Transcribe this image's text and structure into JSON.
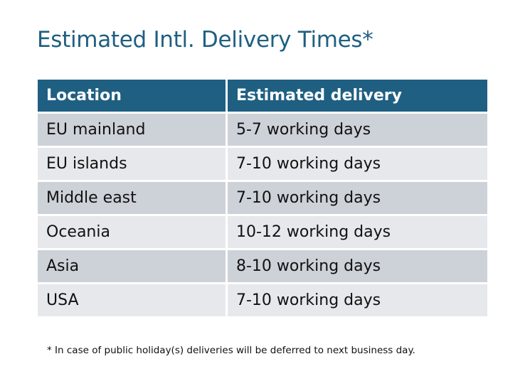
{
  "title": "Estimated Intl. Delivery Times*",
  "table": {
    "headers": [
      "Location",
      "Estimated delivery"
    ],
    "rows": [
      [
        "EU mainland",
        "5-7 working days"
      ],
      [
        "EU islands",
        "7-10 working days"
      ],
      [
        "Middle east",
        "7-10 working days"
      ],
      [
        "Oceania",
        "10-12 working days"
      ],
      [
        "Asia",
        "8-10 working days"
      ],
      [
        "USA",
        "7-10 working days"
      ]
    ]
  },
  "footnote": "* In case of public holiday(s) deliveries will be deferred to next business day.",
  "colors": {
    "accent": "#1f5f82",
    "row_dark": "#cdd1d8",
    "row_light": "#e6e8eb"
  }
}
